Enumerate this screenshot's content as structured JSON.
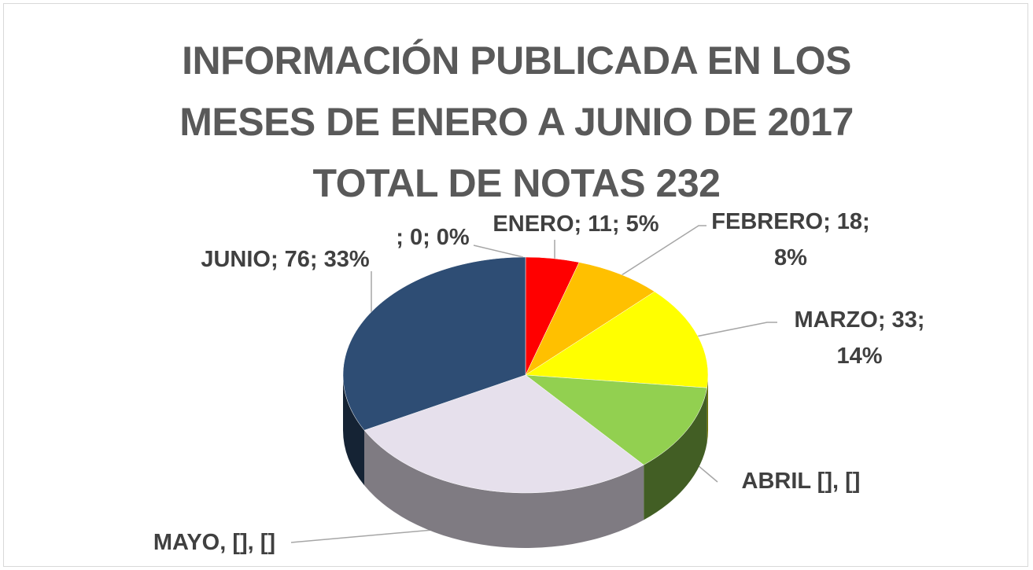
{
  "chart_data": {
    "type": "pie3d",
    "title": "INFORMACIÓN PUBLICADA  EN LOS\nMESES DE ENERO A JUNIO DE 2017\nTOTAL DE NOTAS 232",
    "values": [
      11,
      18,
      33,
      28,
      66,
      76,
      0
    ],
    "value_labels": [
      "ENERO; 11; 5%",
      "FEBRERO; 18; 8%",
      "MARZO; 33; 14%",
      "ABRIL [], []",
      "MAYO, [], []",
      "JUNIO; 76; 33%",
      "; 0; 0%"
    ],
    "colors": [
      "#ff0000",
      "#ffc000",
      "#ffff00",
      "#92d050",
      "#e6e0ec",
      "#2e4d74",
      "#7f7f7f"
    ]
  }
}
